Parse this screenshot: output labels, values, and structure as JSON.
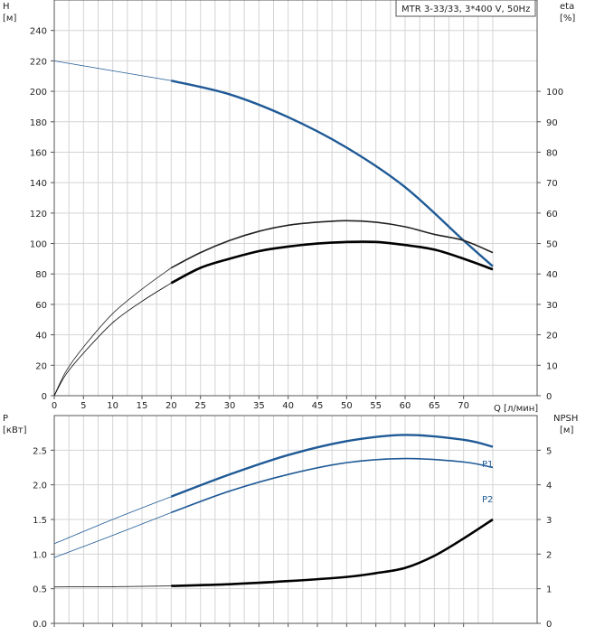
{
  "chart_data": [
    {
      "type": "line",
      "title": "MTR 3-33/33, 3*400 V, 50Hz",
      "ylabel_left": "H",
      "ylabel_left_unit": "[м]",
      "ylabel_right": "eta",
      "ylabel_right_unit": "[%]",
      "xlabel": "Q [л/мин]",
      "xlim": [
        0,
        75
      ],
      "ylim_left": [
        0,
        260
      ],
      "ylim_right": [
        0,
        130
      ],
      "grid": true,
      "x_ticks": [
        "0",
        "5",
        "10",
        "15",
        "20",
        "25",
        "30",
        "35",
        "40",
        "45",
        "50",
        "55",
        "60",
        "65",
        "70"
      ],
      "y_ticks_left": [
        "0",
        "20",
        "40",
        "60",
        "80",
        "100",
        "120",
        "140",
        "160",
        "180",
        "200",
        "220",
        "240"
      ],
      "y_ticks_right": [
        "0",
        "10",
        "20",
        "30",
        "40",
        "50",
        "60",
        "70",
        "80",
        "90",
        "100"
      ],
      "series": [
        {
          "axis": "left",
          "color": "#1f5a96",
          "x": [
            0,
            20,
            30,
            40,
            50,
            60,
            70,
            75
          ],
          "thin_until": 20,
          "y": [
            220,
            207,
            198,
            183,
            163,
            137,
            102,
            85
          ]
        },
        {
          "axis": "right",
          "color": "#222222",
          "x": [
            0,
            2,
            5,
            10,
            15,
            20,
            25,
            30,
            35,
            40,
            45,
            50,
            55,
            60,
            65,
            70,
            75
          ],
          "thin_until": 20,
          "y": [
            0,
            8,
            16,
            27,
            35,
            42,
            47,
            51,
            54,
            56,
            57,
            57.5,
            57,
            55.5,
            53,
            51,
            47
          ]
        },
        {
          "axis": "right",
          "color": "#000000",
          "x": [
            0,
            2,
            5,
            10,
            15,
            20,
            25,
            30,
            35,
            40,
            45,
            50,
            55,
            60,
            65,
            70,
            75
          ],
          "thin_until": 20,
          "y": [
            0,
            7,
            14,
            24,
            31,
            37,
            42,
            45,
            47.5,
            49,
            50,
            50.5,
            50.5,
            49.5,
            48,
            45,
            41.5
          ]
        }
      ]
    },
    {
      "type": "line",
      "ylabel_left": "P",
      "ylabel_left_unit": "[кВт]",
      "ylabel_right": "NPSH",
      "ylabel_right_unit": "[м]",
      "xlim": [
        0,
        75
      ],
      "ylim_left": [
        0,
        3.0
      ],
      "ylim_right": [
        0,
        6
      ],
      "grid": true,
      "y_ticks_left": [
        "0.0",
        "0.5",
        "1.0",
        "1.5",
        "2.0",
        "2.5"
      ],
      "y_ticks_right": [
        "0",
        "1",
        "2",
        "3",
        "4",
        "5"
      ],
      "series": [
        {
          "name": "P1",
          "axis": "left",
          "color": "#1f5a96",
          "x": [
            0,
            10,
            20,
            30,
            40,
            50,
            60,
            70,
            75
          ],
          "thin_until": 20,
          "y": [
            1.15,
            1.5,
            1.83,
            2.15,
            2.43,
            2.63,
            2.72,
            2.65,
            2.55
          ]
        },
        {
          "name": "P2",
          "axis": "left",
          "color": "#1f5a96",
          "x": [
            0,
            10,
            20,
            30,
            40,
            50,
            60,
            70,
            75
          ],
          "thin_until": 20,
          "y": [
            0.95,
            1.27,
            1.6,
            1.91,
            2.15,
            2.32,
            2.38,
            2.33,
            2.25
          ]
        },
        {
          "axis": "right",
          "color": "#000000",
          "x": [
            0,
            10,
            20,
            30,
            40,
            50,
            55,
            60,
            65,
            70,
            75
          ],
          "thin_until": 20,
          "y": [
            1.05,
            1.06,
            1.08,
            1.13,
            1.22,
            1.34,
            1.45,
            1.6,
            1.95,
            2.45,
            3.0
          ]
        }
      ]
    }
  ]
}
